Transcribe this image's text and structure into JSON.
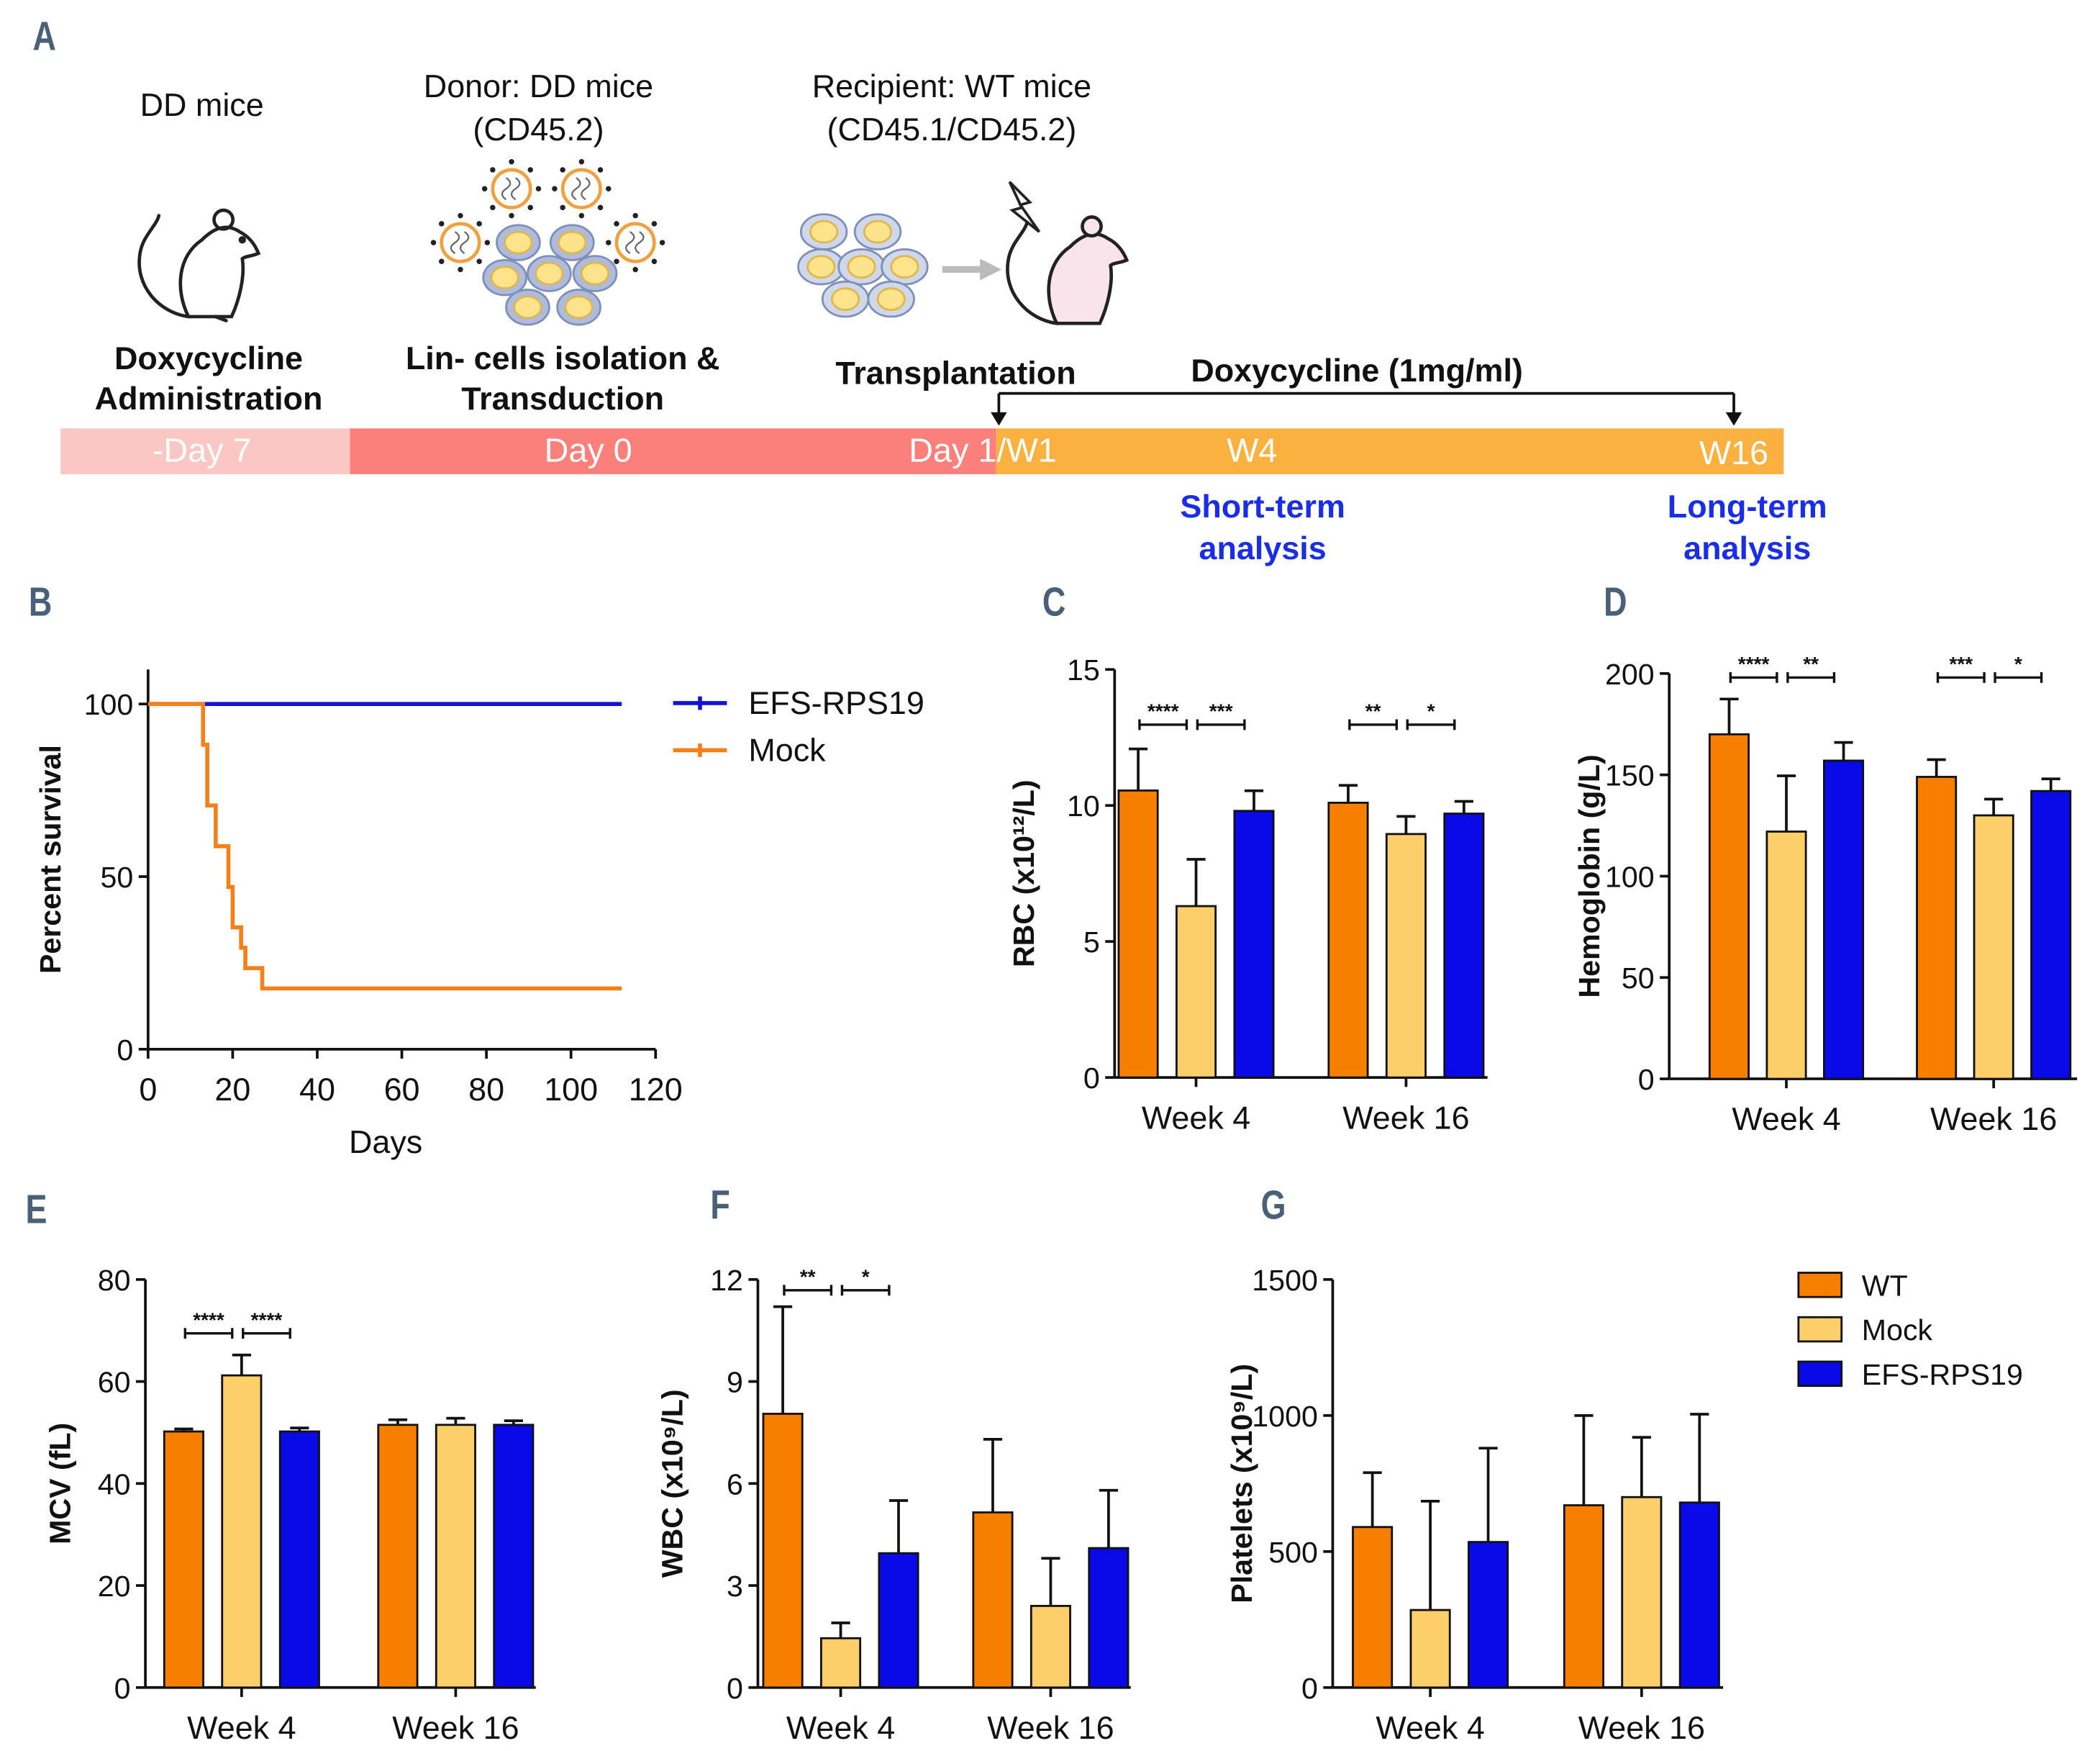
{
  "panel_labels": [
    "A",
    "B",
    "C",
    "D",
    "E",
    "F",
    "G"
  ],
  "schematic": {
    "steps": [
      {
        "caption": [
          "DD mice"
        ],
        "title": [
          "Doxycycline",
          "Administration"
        ]
      },
      {
        "caption": [
          "Donor: DD mice",
          "(CD45.2)"
        ],
        "title": [
          "Lin- cells isolation &",
          "Transduction"
        ]
      },
      {
        "caption": [
          "Recipient: WT mice",
          "(CD45.1/CD45.2)"
        ],
        "title": [
          "Transplantation"
        ]
      }
    ],
    "treatment": "Doxycycline (1mg/ml)",
    "timeline": [
      "-Day 7",
      "Day 0",
      "Day 1/W1",
      "W4",
      "W16"
    ],
    "analyses": [
      [
        "Short-term",
        "analysis"
      ],
      [
        "Long-term",
        "analysis"
      ]
    ]
  },
  "chart_data": [
    {
      "type": "line",
      "x_label": "Days",
      "y_label": "Percent survival",
      "xlim": [
        0,
        120
      ],
      "ylim": [
        0,
        110
      ],
      "xticks": [
        0,
        20,
        40,
        60,
        80,
        100,
        120
      ],
      "yticks": [
        0,
        50,
        100
      ],
      "series": [
        {
          "name": "EFS-RPS19",
          "color": "#1212d8",
          "x": [
            0,
            112
          ],
          "values": [
            100,
            100
          ]
        },
        {
          "name": "Mock",
          "color": "#f5801a",
          "x": [
            0,
            13,
            13,
            14,
            14,
            16,
            16,
            19,
            19,
            20,
            20,
            22,
            22,
            23,
            23,
            27,
            27,
            112
          ],
          "values": [
            100,
            100,
            88.2,
            88.2,
            70.6,
            70.6,
            58.8,
            58.8,
            47,
            47,
            35.3,
            35.3,
            29.4,
            29.4,
            23.5,
            23.5,
            17.6,
            17.6
          ]
        }
      ]
    },
    {
      "type": "bar",
      "y_label": "RBC (x10¹²/L)",
      "ylim": [
        0,
        15
      ],
      "yticks": [
        0,
        5,
        10,
        15
      ],
      "categories": [
        "Week 4",
        "Week 16"
      ],
      "series": [
        {
          "color": "#f77f00",
          "values": [
            10.55,
            10.1
          ],
          "errors": [
            1.53,
            0.64
          ]
        },
        {
          "color": "#fccf6b",
          "values": [
            6.3,
            8.95
          ],
          "errors": [
            1.72,
            0.65
          ]
        },
        {
          "color": "#0a0ae8",
          "values": [
            9.8,
            9.7
          ],
          "errors": [
            0.74,
            0.45
          ]
        }
      ],
      "significance": [
        [
          "****",
          "***"
        ],
        [
          "**",
          "*"
        ]
      ]
    },
    {
      "type": "bar",
      "y_label": "Hemoglobin (g/L)",
      "ylim": [
        0,
        200
      ],
      "yticks": [
        0,
        50,
        100,
        150,
        200
      ],
      "categories": [
        "Week 4",
        "Week 16"
      ],
      "series": [
        {
          "color": "#f77f00",
          "values": [
            170,
            149
          ],
          "errors": [
            17.4,
            8.5
          ]
        },
        {
          "color": "#fccf6b",
          "values": [
            122,
            130
          ],
          "errors": [
            27.5,
            8
          ]
        },
        {
          "color": "#0a0ae8",
          "values": [
            157,
            142
          ],
          "errors": [
            9,
            6
          ]
        }
      ],
      "significance": [
        [
          "****",
          "**"
        ],
        [
          "***",
          "*"
        ]
      ]
    },
    {
      "type": "bar",
      "y_label": "MCV (fL)",
      "ylim": [
        0,
        80
      ],
      "yticks": [
        0,
        20,
        40,
        60,
        80
      ],
      "categories": [
        "Week 4",
        "Week 16"
      ],
      "series": [
        {
          "color": "#f77f00",
          "values": [
            50.2,
            51.5
          ],
          "errors": [
            0.5,
            1
          ]
        },
        {
          "color": "#fccf6b",
          "values": [
            61.2,
            51.5
          ],
          "errors": [
            4,
            1.3
          ]
        },
        {
          "color": "#0a0ae8",
          "values": [
            50.2,
            51.5
          ],
          "errors": [
            0.7,
            0.8
          ]
        }
      ],
      "significance": [
        [
          "****",
          "****"
        ],
        []
      ]
    },
    {
      "type": "bar",
      "y_label": "WBC (x10⁹/L)",
      "ylim": [
        0,
        12
      ],
      "yticks": [
        0,
        3,
        6,
        9,
        12
      ],
      "categories": [
        "Week 4",
        "Week 16"
      ],
      "series": [
        {
          "color": "#f77f00",
          "values": [
            8.05,
            5.15
          ],
          "errors": [
            3.15,
            2.15
          ]
        },
        {
          "color": "#fccf6b",
          "values": [
            1.45,
            2.4
          ],
          "errors": [
            0.45,
            1.4
          ]
        },
        {
          "color": "#0a0ae8",
          "values": [
            3.95,
            4.1
          ],
          "errors": [
            1.55,
            1.7
          ]
        }
      ],
      "significance": [
        [
          "**",
          "*"
        ],
        []
      ]
    },
    {
      "type": "bar",
      "y_label": "Platelets (x10⁹/L)",
      "ylim": [
        0,
        1500
      ],
      "yticks": [
        0,
        500,
        1000,
        1500
      ],
      "categories": [
        "Week 4",
        "Week 16"
      ],
      "series": [
        {
          "name": "WT",
          "color": "#f77f00",
          "values": [
            590,
            670
          ],
          "errors": [
            200,
            330
          ]
        },
        {
          "name": "Mock",
          "color": "#fccf6b",
          "values": [
            285,
            700
          ],
          "errors": [
            400,
            220
          ]
        },
        {
          "name": "EFS-RPS19",
          "color": "#0a0ae8",
          "values": [
            535,
            680
          ],
          "errors": [
            345,
            325
          ]
        }
      ]
    }
  ]
}
